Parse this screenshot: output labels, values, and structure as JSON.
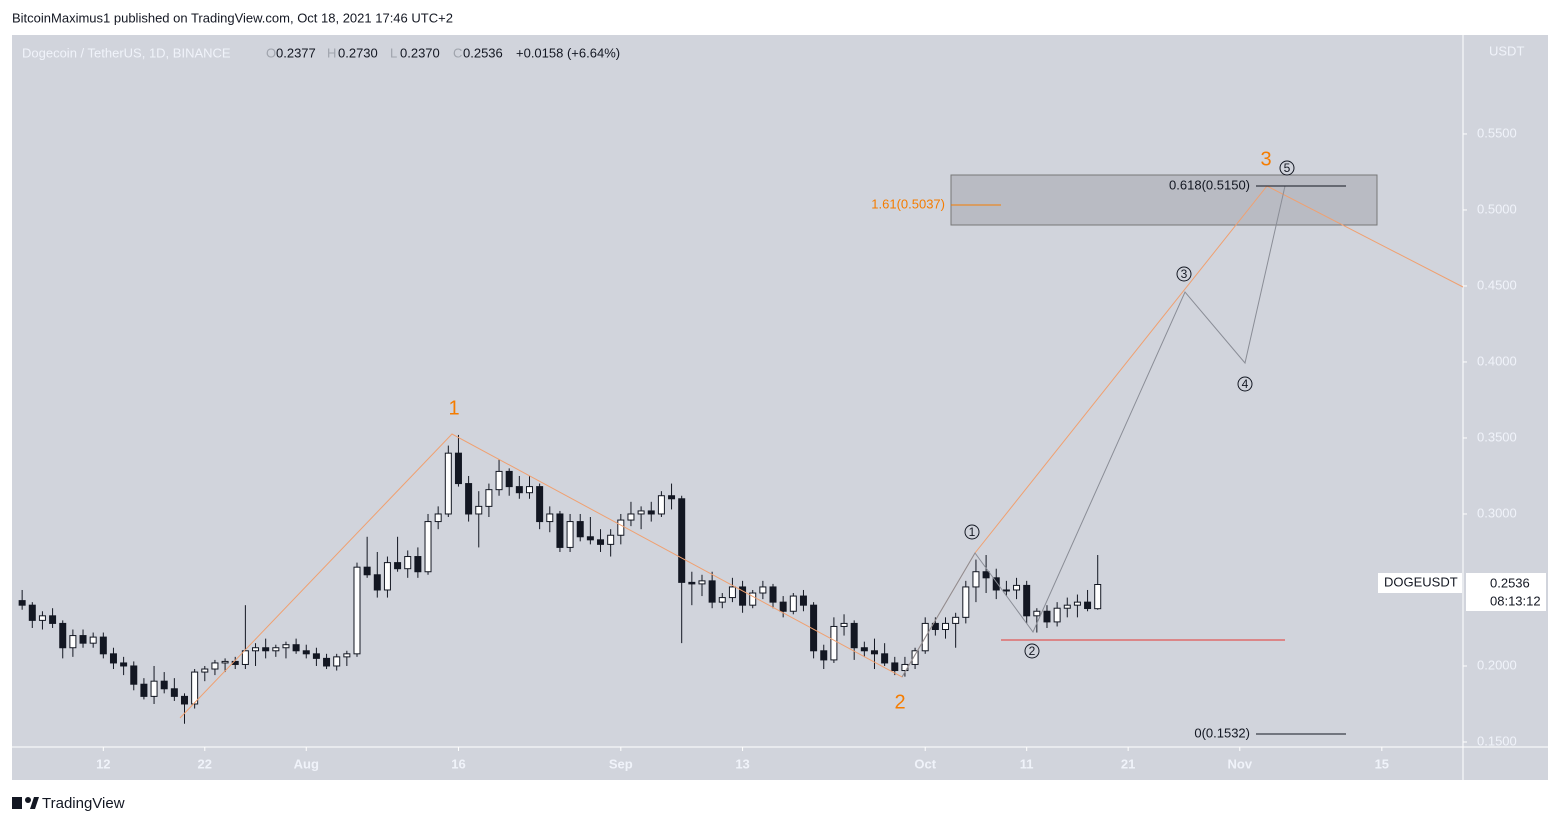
{
  "attribution": "BitcoinMaximus1 published on TradingView.com, Oct 18, 2021 17:46 UTC+2",
  "footer": "TradingView",
  "chart_data": {
    "type": "candlestick",
    "title": "Dogecoin / TetherUS, 1D, BINANCE",
    "ohlc_header": {
      "o_key": "O",
      "o": "0.2377",
      "h_key": "H",
      "h": "0.2730",
      "l_key": "L",
      "l": "0.2370",
      "c_key": "C",
      "c": "0.2536",
      "change": "+0.0158 (+6.64%)"
    },
    "y_unit": "USDT",
    "symbol_label": "DOGEUSDT",
    "last_price": "0.2536",
    "countdown": "08:13:12",
    "annotations": {
      "wave1": "1",
      "wave2": "2",
      "wave3": "3",
      "sub1": "1",
      "sub2": "2",
      "sub3": "3",
      "sub4": "4",
      "sub5": "5",
      "fib161": "1.61(0.5037)",
      "fib618": "0.618(0.5150)",
      "fib0": "0(0.1532)"
    },
    "up_color": "#ffffff",
    "down_color": "#131722",
    "edge_color": "#131722",
    "x": [
      "2021-07-04",
      "2021-07-05",
      "2021-07-06",
      "2021-07-07",
      "2021-07-08",
      "2021-07-09",
      "2021-07-10",
      "2021-07-11",
      "2021-07-12",
      "2021-07-13",
      "2021-07-14",
      "2021-07-15",
      "2021-07-16",
      "2021-07-17",
      "2021-07-18",
      "2021-07-19",
      "2021-07-20",
      "2021-07-21",
      "2021-07-22",
      "2021-07-23",
      "2021-07-24",
      "2021-07-25",
      "2021-07-26",
      "2021-07-27",
      "2021-07-28",
      "2021-07-29",
      "2021-07-30",
      "2021-07-31",
      "2021-08-01",
      "2021-08-02",
      "2021-08-03",
      "2021-08-04",
      "2021-08-05",
      "2021-08-06",
      "2021-08-07",
      "2021-08-08",
      "2021-08-09",
      "2021-08-10",
      "2021-08-11",
      "2021-08-12",
      "2021-08-13",
      "2021-08-14",
      "2021-08-15",
      "2021-08-16",
      "2021-08-17",
      "2021-08-18",
      "2021-08-19",
      "2021-08-20",
      "2021-08-21",
      "2021-08-22",
      "2021-08-23",
      "2021-08-24",
      "2021-08-25",
      "2021-08-26",
      "2021-08-27",
      "2021-08-28",
      "2021-08-29",
      "2021-08-30",
      "2021-08-31",
      "2021-09-01",
      "2021-09-02",
      "2021-09-03",
      "2021-09-04",
      "2021-09-05",
      "2021-09-06",
      "2021-09-07",
      "2021-09-08",
      "2021-09-09",
      "2021-09-10",
      "2021-09-11",
      "2021-09-12",
      "2021-09-13",
      "2021-09-14",
      "2021-09-15",
      "2021-09-16",
      "2021-09-17",
      "2021-09-18",
      "2021-09-19",
      "2021-09-20",
      "2021-09-21",
      "2021-09-22",
      "2021-09-23",
      "2021-09-24",
      "2021-09-25",
      "2021-09-26",
      "2021-09-27",
      "2021-09-28",
      "2021-09-29",
      "2021-09-30",
      "2021-10-01",
      "2021-10-02",
      "2021-10-03",
      "2021-10-04",
      "2021-10-05",
      "2021-10-06",
      "2021-10-07",
      "2021-10-08",
      "2021-10-09",
      "2021-10-10",
      "2021-10-11",
      "2021-10-12",
      "2021-10-13",
      "2021-10-14",
      "2021-10-15",
      "2021-10-16",
      "2021-10-17",
      "2021-10-18"
    ],
    "open": [
      0.243,
      0.24,
      0.23,
      0.233,
      0.228,
      0.212,
      0.22,
      0.215,
      0.219,
      0.208,
      0.202,
      0.2,
      0.188,
      0.18,
      0.19,
      0.185,
      0.18,
      0.175,
      0.196,
      0.198,
      0.202,
      0.203,
      0.201,
      0.21,
      0.212,
      0.21,
      0.212,
      0.214,
      0.21,
      0.208,
      0.205,
      0.2,
      0.206,
      0.208,
      0.265,
      0.26,
      0.25,
      0.268,
      0.264,
      0.272,
      0.262,
      0.295,
      0.3,
      0.34,
      0.32,
      0.3,
      0.305,
      0.316,
      0.328,
      0.318,
      0.314,
      0.318,
      0.295,
      0.3,
      0.278,
      0.295,
      0.285,
      0.283,
      0.28,
      0.286,
      0.296,
      0.3,
      0.302,
      0.3,
      0.312,
      0.31,
      0.255,
      0.254,
      0.256,
      0.242,
      0.245,
      0.252,
      0.24,
      0.248,
      0.252,
      0.242,
      0.236,
      0.246,
      0.24,
      0.21,
      0.204,
      0.226,
      0.228,
      0.212,
      0.21,
      0.208,
      0.202,
      0.197,
      0.201,
      0.21,
      0.228,
      0.224,
      0.228,
      0.232,
      0.252,
      0.262,
      0.258,
      0.25,
      0.25,
      0.253,
      0.233,
      0.236,
      0.229,
      0.238,
      0.24,
      0.242,
      0.2377
    ],
    "high": [
      0.25,
      0.242,
      0.236,
      0.238,
      0.23,
      0.224,
      0.224,
      0.222,
      0.222,
      0.212,
      0.206,
      0.203,
      0.192,
      0.2,
      0.196,
      0.192,
      0.182,
      0.198,
      0.2,
      0.204,
      0.205,
      0.206,
      0.24,
      0.215,
      0.218,
      0.214,
      0.216,
      0.218,
      0.214,
      0.212,
      0.208,
      0.208,
      0.21,
      0.268,
      0.285,
      0.275,
      0.272,
      0.285,
      0.276,
      0.278,
      0.3,
      0.305,
      0.345,
      0.352,
      0.325,
      0.315,
      0.32,
      0.336,
      0.33,
      0.325,
      0.325,
      0.32,
      0.305,
      0.302,
      0.3,
      0.3,
      0.298,
      0.29,
      0.29,
      0.3,
      0.308,
      0.305,
      0.308,
      0.315,
      0.32,
      0.312,
      0.262,
      0.26,
      0.262,
      0.248,
      0.258,
      0.256,
      0.25,
      0.256,
      0.254,
      0.246,
      0.248,
      0.25,
      0.242,
      0.214,
      0.232,
      0.234,
      0.23,
      0.216,
      0.218,
      0.215,
      0.206,
      0.206,
      0.212,
      0.232,
      0.232,
      0.232,
      0.235,
      0.256,
      0.27,
      0.273,
      0.264,
      0.256,
      0.258,
      0.256,
      0.238,
      0.24,
      0.242,
      0.245,
      0.247,
      0.25,
      0.273
    ],
    "low": [
      0.237,
      0.225,
      0.224,
      0.225,
      0.205,
      0.206,
      0.212,
      0.212,
      0.205,
      0.198,
      0.194,
      0.184,
      0.178,
      0.175,
      0.182,
      0.177,
      0.162,
      0.172,
      0.19,
      0.194,
      0.196,
      0.198,
      0.198,
      0.2,
      0.205,
      0.206,
      0.205,
      0.208,
      0.205,
      0.2,
      0.198,
      0.197,
      0.2,
      0.206,
      0.258,
      0.245,
      0.245,
      0.262,
      0.258,
      0.258,
      0.26,
      0.29,
      0.298,
      0.318,
      0.295,
      0.278,
      0.298,
      0.312,
      0.312,
      0.31,
      0.31,
      0.29,
      0.288,
      0.275,
      0.275,
      0.282,
      0.28,
      0.275,
      0.272,
      0.28,
      0.292,
      0.29,
      0.295,
      0.298,
      0.303,
      0.215,
      0.24,
      0.246,
      0.238,
      0.238,
      0.242,
      0.235,
      0.238,
      0.244,
      0.238,
      0.232,
      0.234,
      0.236,
      0.205,
      0.198,
      0.202,
      0.22,
      0.204,
      0.206,
      0.198,
      0.2,
      0.194,
      0.193,
      0.198,
      0.208,
      0.22,
      0.218,
      0.212,
      0.228,
      0.242,
      0.248,
      0.244,
      0.246,
      0.244,
      0.228,
      0.222,
      0.225,
      0.226,
      0.232,
      0.232,
      0.236,
      0.237
    ],
    "close": [
      0.24,
      0.23,
      0.233,
      0.228,
      0.212,
      0.22,
      0.215,
      0.219,
      0.208,
      0.202,
      0.2,
      0.188,
      0.18,
      0.19,
      0.185,
      0.18,
      0.175,
      0.196,
      0.198,
      0.202,
      0.203,
      0.201,
      0.21,
      0.212,
      0.21,
      0.212,
      0.214,
      0.21,
      0.208,
      0.205,
      0.2,
      0.206,
      0.208,
      0.265,
      0.26,
      0.25,
      0.268,
      0.264,
      0.272,
      0.262,
      0.295,
      0.3,
      0.34,
      0.32,
      0.3,
      0.305,
      0.316,
      0.328,
      0.318,
      0.314,
      0.318,
      0.295,
      0.3,
      0.278,
      0.295,
      0.285,
      0.283,
      0.28,
      0.286,
      0.296,
      0.3,
      0.302,
      0.3,
      0.312,
      0.31,
      0.255,
      0.254,
      0.256,
      0.242,
      0.245,
      0.252,
      0.24,
      0.248,
      0.252,
      0.242,
      0.236,
      0.246,
      0.24,
      0.21,
      0.204,
      0.226,
      0.228,
      0.212,
      0.21,
      0.208,
      0.202,
      0.197,
      0.201,
      0.21,
      0.228,
      0.224,
      0.228,
      0.232,
      0.252,
      0.262,
      0.258,
      0.25,
      0.25,
      0.253,
      0.233,
      0.236,
      0.229,
      0.238,
      0.24,
      0.242,
      0.2378,
      0.2536
    ],
    "xlim": [
      "2021-07-03",
      "2021-11-23"
    ],
    "xticks": [
      {
        "value": "2021-07-12",
        "label": "12"
      },
      {
        "value": "2021-07-22",
        "label": "22"
      },
      {
        "value": "2021-08-01",
        "label": "Aug"
      },
      {
        "value": "2021-08-16",
        "label": "16"
      },
      {
        "value": "2021-09-01",
        "label": "Sep"
      },
      {
        "value": "2021-09-13",
        "label": "13"
      },
      {
        "value": "2021-10-01",
        "label": "Oct"
      },
      {
        "value": "2021-10-11",
        "label": "11"
      },
      {
        "value": "2021-10-21",
        "label": "21"
      },
      {
        "value": "2021-11-01",
        "label": "Nov"
      },
      {
        "value": "2021-11-15",
        "label": "15"
      }
    ],
    "ylim": [
      0.1467,
      0.6151
    ],
    "yticks": [
      {
        "value": 0.15,
        "label": "0.1500"
      },
      {
        "value": 0.2,
        "label": "0.2000"
      },
      {
        "value": 0.3,
        "label": "0.3000"
      },
      {
        "value": 0.35,
        "label": "0.3500"
      },
      {
        "value": 0.4,
        "label": "0.4000"
      },
      {
        "value": 0.45,
        "label": "0.4500"
      },
      {
        "value": 0.5,
        "label": "0.5000"
      },
      {
        "value": 0.55,
        "label": "0.5500"
      }
    ]
  }
}
